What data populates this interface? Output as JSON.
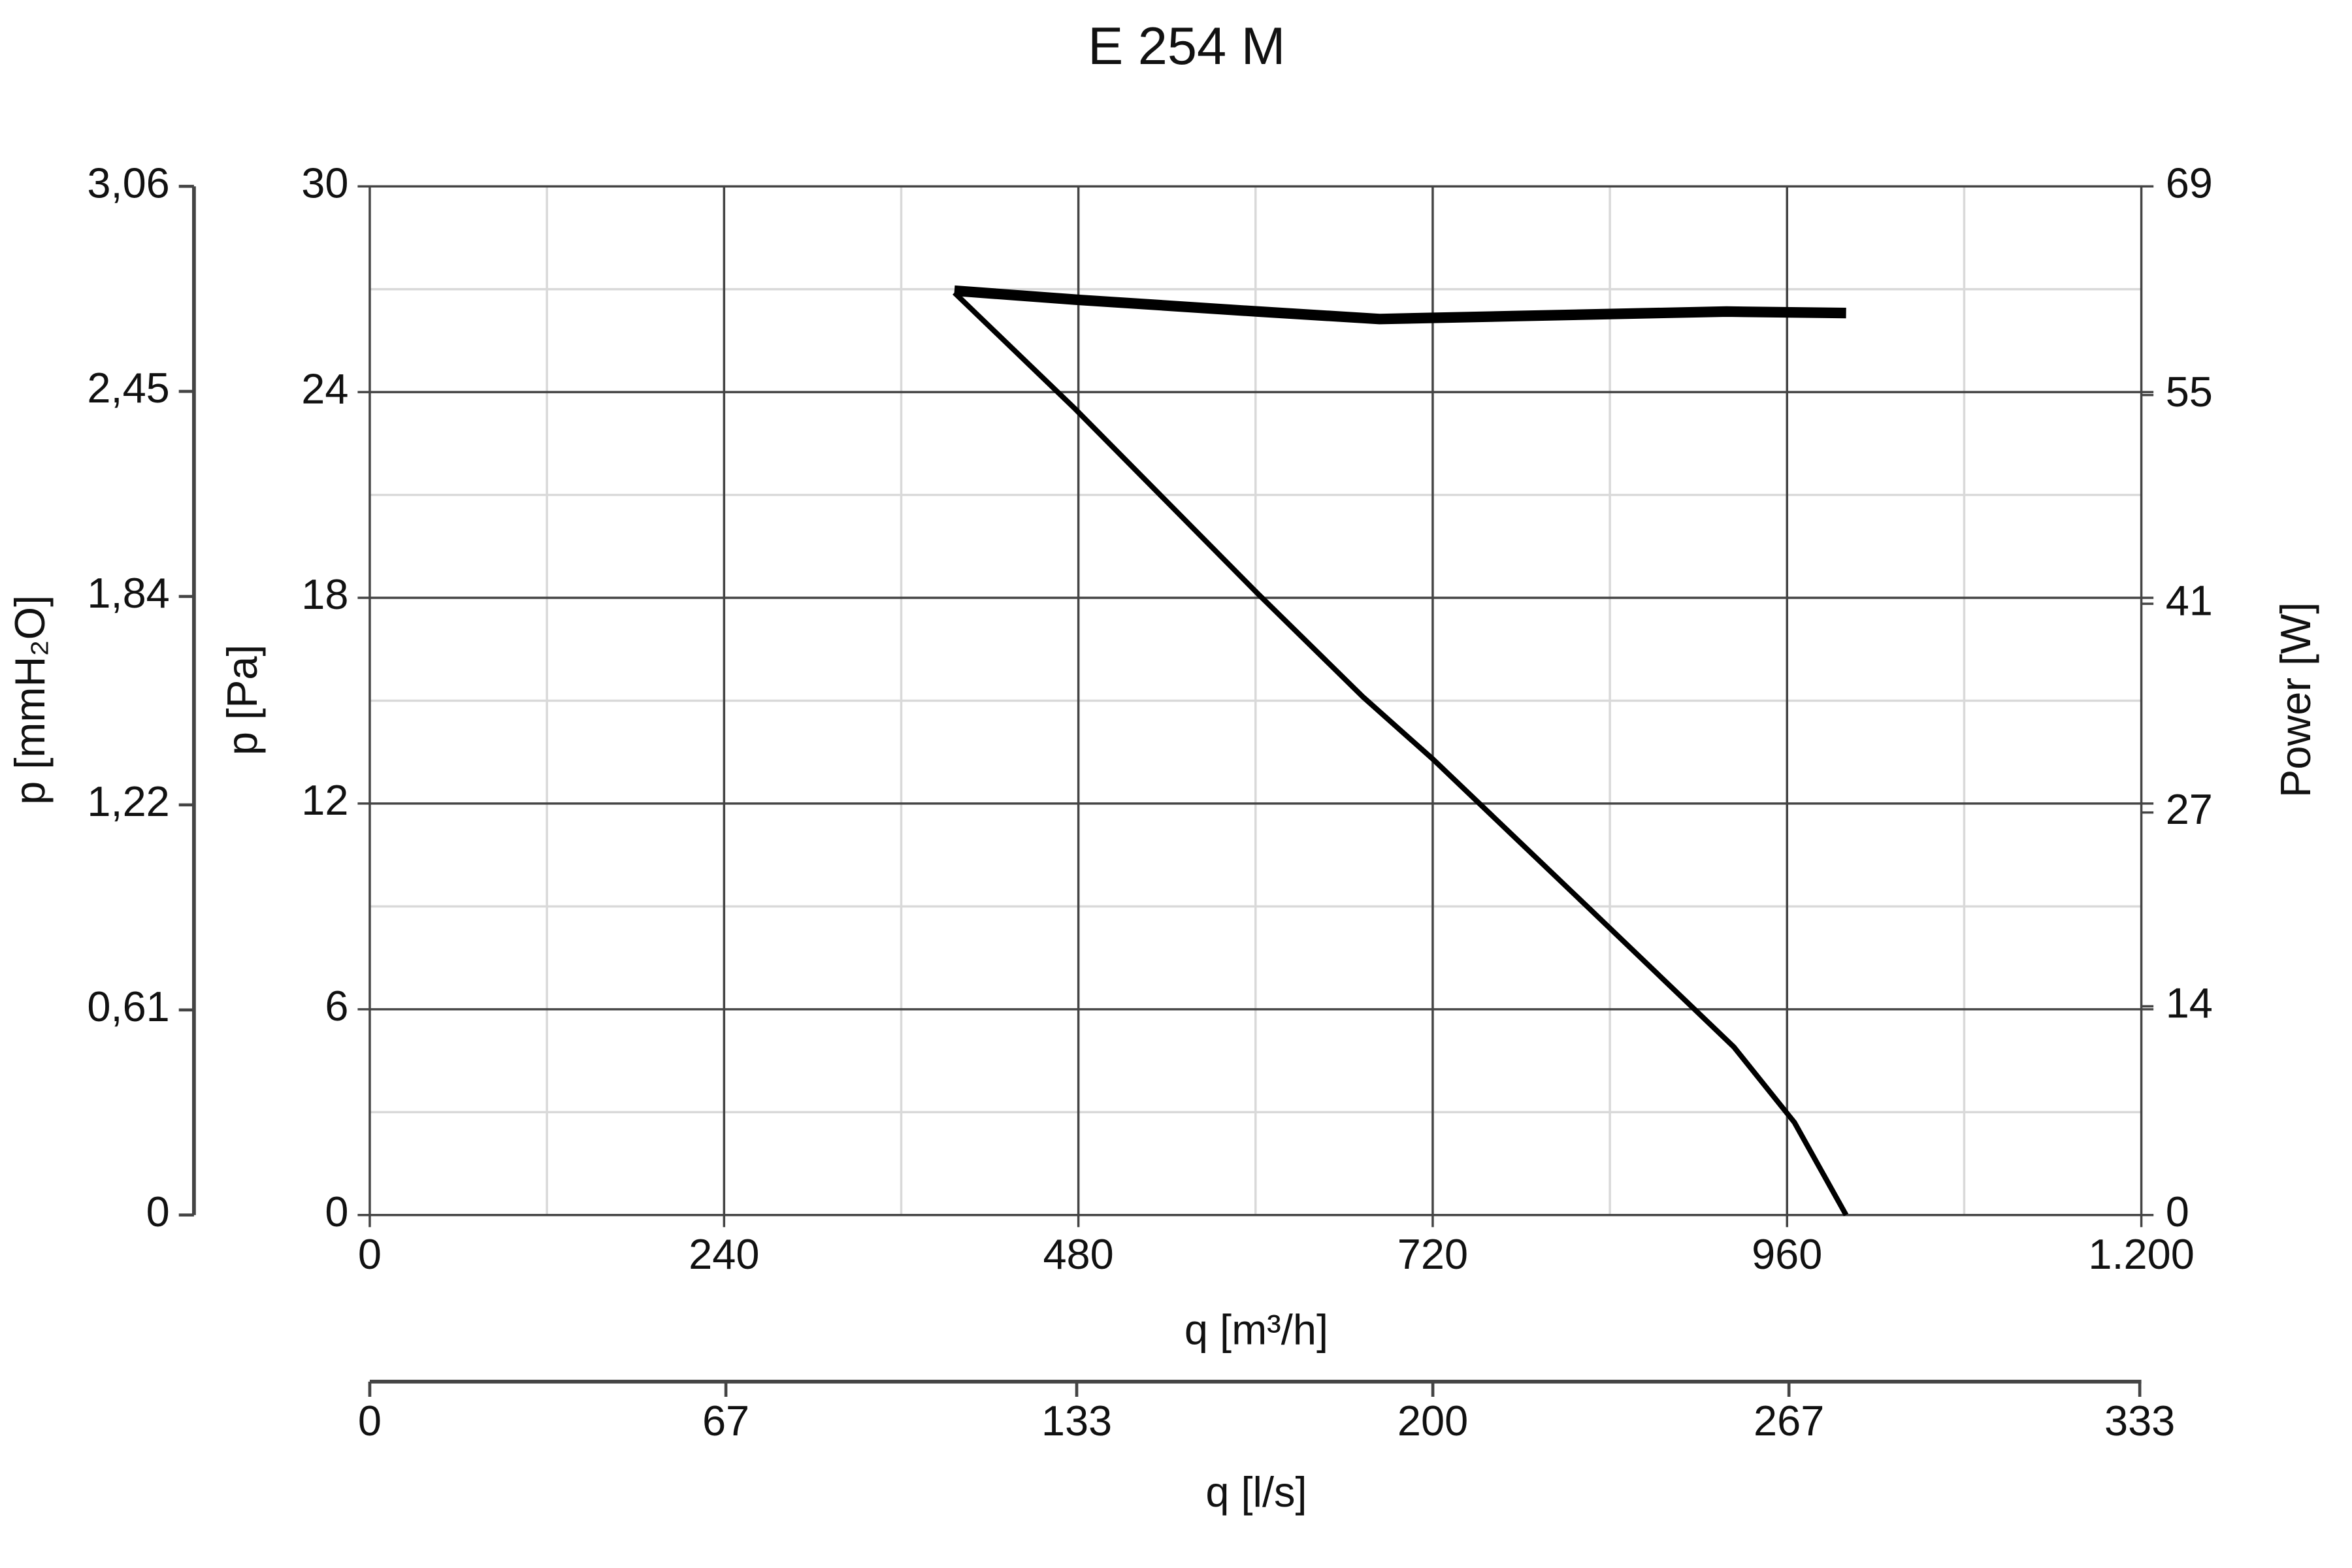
{
  "chart_data": {
    "type": "line",
    "title": "E 254 M",
    "xlabel": "q [m³/h]",
    "ylabel": "p [Pa]",
    "y2label": "Power [W]",
    "y3label": "p [mmH₂O]",
    "x2label": "q [l/s]",
    "xlim": [
      0,
      1200
    ],
    "xticks": [
      0,
      240,
      480,
      720,
      960,
      {
        "value": 1200,
        "label": "1.200"
      }
    ],
    "ylim": [
      0,
      30
    ],
    "yticks": [
      0,
      6,
      12,
      18,
      24,
      30
    ],
    "y2lim": [
      0,
      69
    ],
    "y2ticks": [
      0,
      14,
      27,
      41,
      55,
      69
    ],
    "y3lim": [
      0,
      3.06
    ],
    "y3ticks": [
      0,
      {
        "value": 0.61,
        "label": "0,61"
      },
      {
        "value": 1.22,
        "label": "1,22"
      },
      {
        "value": 1.84,
        "label": "1,84"
      },
      {
        "value": 2.45,
        "label": "2,45"
      },
      {
        "value": 3.06,
        "label": "3,06"
      }
    ],
    "x2lim": [
      0,
      333.3
    ],
    "x2ticks": [
      0,
      67,
      133,
      200,
      267,
      333
    ],
    "grid": true,
    "minor_grid": true,
    "series": [
      {
        "color": "#000000",
        "x": [
          396,
          478,
          602,
          673,
          720,
          827,
          924,
          965,
          1000
        ],
        "values": [
          26.9,
          23.5,
          18.1,
          15.1,
          13.3,
          8.9,
          4.9,
          2.7,
          0
        ]
      },
      {
        "color": "#000000",
        "axis": "y2",
        "x": [
          396,
          478,
          602,
          684,
          776,
          919,
          1000
        ],
        "values": [
          62.0,
          61.4,
          60.6,
          60.1,
          60.3,
          60.6,
          60.5
        ]
      }
    ]
  }
}
